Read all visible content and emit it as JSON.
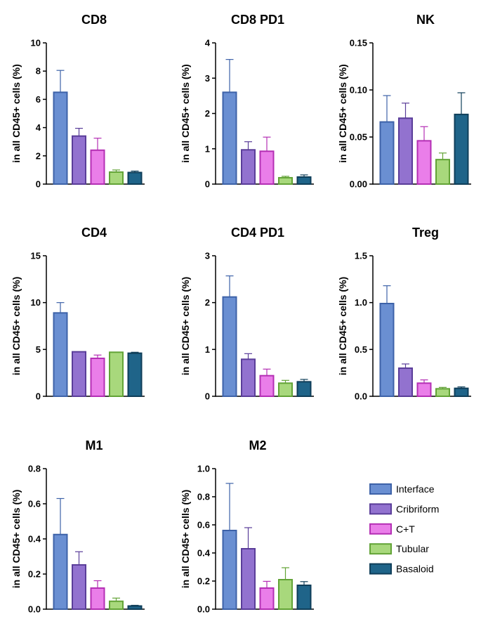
{
  "legend": {
    "items": [
      {
        "label": "Interface",
        "fill": "#6a8fd2",
        "stroke": "#3d62a8"
      },
      {
        "label": "Cribriform",
        "fill": "#9272cf",
        "stroke": "#5a3d99"
      },
      {
        "label": "C+T",
        "fill": "#ea7ee9",
        "stroke": "#b42fb4"
      },
      {
        "label": "Tubular",
        "fill": "#a8d87c",
        "stroke": "#62a336"
      },
      {
        "label": "Basaloid",
        "fill": "#1f6489",
        "stroke": "#0f3e59"
      }
    ]
  },
  "chart_data": [
    {
      "type": "bar",
      "title": "CD8",
      "ylabel": "in all CD45+ cells (%)",
      "categories": [
        "Interface",
        "Cribriform",
        "C+T",
        "Tubular",
        "Basaloid"
      ],
      "values": [
        6.5,
        3.4,
        2.4,
        0.85,
        0.82
      ],
      "errors": [
        1.55,
        0.55,
        0.85,
        0.15,
        0.1
      ],
      "ylim": [
        0,
        10
      ],
      "yticks": [
        "0",
        "2",
        "4",
        "6",
        "8",
        "10"
      ]
    },
    {
      "type": "bar",
      "title": "CD8 PD1",
      "ylabel": "in all CD45+ cells (%)",
      "categories": [
        "Interface",
        "Cribriform",
        "C+T",
        "Tubular",
        "Basaloid"
      ],
      "values": [
        2.6,
        0.97,
        0.93,
        0.18,
        0.2
      ],
      "errors": [
        0.93,
        0.23,
        0.4,
        0.04,
        0.06
      ],
      "ylim": [
        0,
        4
      ],
      "yticks": [
        "0",
        "1",
        "2",
        "3",
        "4"
      ]
    },
    {
      "type": "bar",
      "title": "NK",
      "ylabel": "in all CD45+ cells (%)",
      "categories": [
        "Interface",
        "Cribriform",
        "C+T",
        "Tubular",
        "Basaloid"
      ],
      "values": [
        0.066,
        0.07,
        0.046,
        0.026,
        0.074
      ],
      "errors": [
        0.028,
        0.016,
        0.015,
        0.007,
        0.023
      ],
      "ylim": [
        0,
        0.15
      ],
      "yticks": [
        "0.00",
        "0.05",
        "0.10",
        "0.15"
      ]
    },
    {
      "type": "bar",
      "title": "CD4",
      "ylabel": "in all CD45+ cells (%)",
      "categories": [
        "Interface",
        "Cribriform",
        "C+T",
        "Tubular",
        "Basaloid"
      ],
      "values": [
        8.9,
        4.75,
        4.05,
        4.7,
        4.6
      ],
      "errors": [
        1.1,
        0.0,
        0.35,
        0.0,
        0.1
      ],
      "ylim": [
        0,
        15
      ],
      "yticks": [
        "0",
        "5",
        "10",
        "15"
      ]
    },
    {
      "type": "bar",
      "title": "CD4 PD1",
      "ylabel": "in all CD45+ cells (%)",
      "categories": [
        "Interface",
        "Cribriform",
        "C+T",
        "Tubular",
        "Basaloid"
      ],
      "values": [
        2.12,
        0.79,
        0.44,
        0.28,
        0.31
      ],
      "errors": [
        0.45,
        0.12,
        0.14,
        0.06,
        0.05
      ],
      "ylim": [
        0,
        3
      ],
      "yticks": [
        "0",
        "1",
        "2",
        "3"
      ]
    },
    {
      "type": "bar",
      "title": "Treg",
      "ylabel": "in all CD45+ cells (%)",
      "categories": [
        "Interface",
        "Cribriform",
        "C+T",
        "Tubular",
        "Basaloid"
      ],
      "values": [
        0.99,
        0.3,
        0.14,
        0.08,
        0.085
      ],
      "errors": [
        0.19,
        0.045,
        0.035,
        0.015,
        0.015
      ],
      "ylim": [
        0,
        1.5
      ],
      "yticks": [
        "0.0",
        "0.5",
        "1.0",
        "1.5"
      ]
    },
    {
      "type": "bar",
      "title": "M1",
      "ylabel": "in all CD45+ cells (%)",
      "categories": [
        "Interface",
        "Cribriform",
        "C+T",
        "Tubular",
        "Basaloid"
      ],
      "values": [
        0.425,
        0.252,
        0.12,
        0.045,
        0.018
      ],
      "errors": [
        0.205,
        0.075,
        0.042,
        0.018,
        0.004
      ],
      "ylim": [
        0,
        0.8
      ],
      "yticks": [
        "0.0",
        "0.2",
        "0.4",
        "0.6",
        "0.8"
      ]
    },
    {
      "type": "bar",
      "title": "M2",
      "ylabel": "in all CD45+ cells (%)",
      "categories": [
        "Interface",
        "Cribriform",
        "C+T",
        "Tubular",
        "Basaloid"
      ],
      "values": [
        0.56,
        0.43,
        0.15,
        0.21,
        0.17
      ],
      "errors": [
        0.335,
        0.15,
        0.048,
        0.085,
        0.026
      ],
      "ylim": [
        0,
        1.0
      ],
      "yticks": [
        "0.0",
        "0.2",
        "0.4",
        "0.6",
        "0.8",
        "1.0"
      ]
    }
  ]
}
